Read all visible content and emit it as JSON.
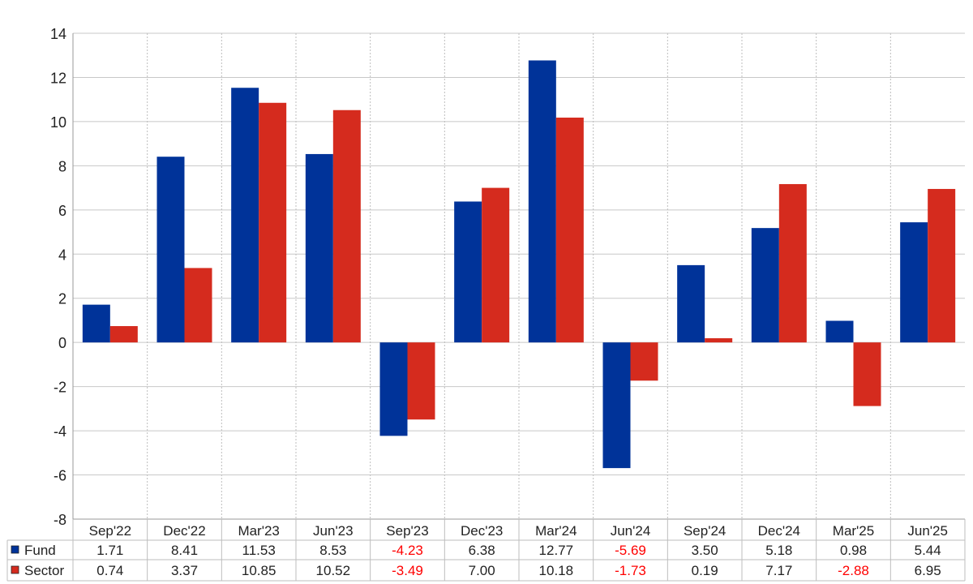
{
  "chart_data": {
    "type": "bar",
    "categories": [
      "Sep'22",
      "Dec'22",
      "Mar'23",
      "Jun'23",
      "Sep'23",
      "Dec'23",
      "Mar'24",
      "Jun'24",
      "Sep'24",
      "Dec'24",
      "Mar'25",
      "Jun'25"
    ],
    "series": [
      {
        "name": "Fund",
        "color": "#003399",
        "values": [
          1.71,
          8.41,
          11.53,
          8.53,
          -4.23,
          6.38,
          12.77,
          -5.69,
          3.5,
          5.18,
          0.98,
          5.44
        ],
        "labels": [
          "1.71",
          "8.41",
          "11.53",
          "8.53",
          "-4.23",
          "6.38",
          "12.77",
          "-5.69",
          "3.50",
          "5.18",
          "0.98",
          "5.44"
        ]
      },
      {
        "name": "Sector",
        "color": "#d52b1e",
        "values": [
          0.74,
          3.37,
          10.85,
          10.52,
          -3.49,
          7.0,
          10.18,
          -1.73,
          0.19,
          7.17,
          -2.88,
          6.95
        ],
        "labels": [
          "0.74",
          "3.37",
          "10.85",
          "10.52",
          "-3.49",
          "7.00",
          "10.18",
          "-1.73",
          "0.19",
          "7.17",
          "-2.88",
          "6.95"
        ]
      }
    ],
    "yticks": [
      "-8",
      "-6",
      "-4",
      "-2",
      "0",
      "2",
      "4",
      "6",
      "8",
      "10",
      "12",
      "14"
    ],
    "ylim": [
      -8,
      14
    ],
    "grid": true,
    "legend": "table-below",
    "negative_label_color": "#ff0000"
  }
}
